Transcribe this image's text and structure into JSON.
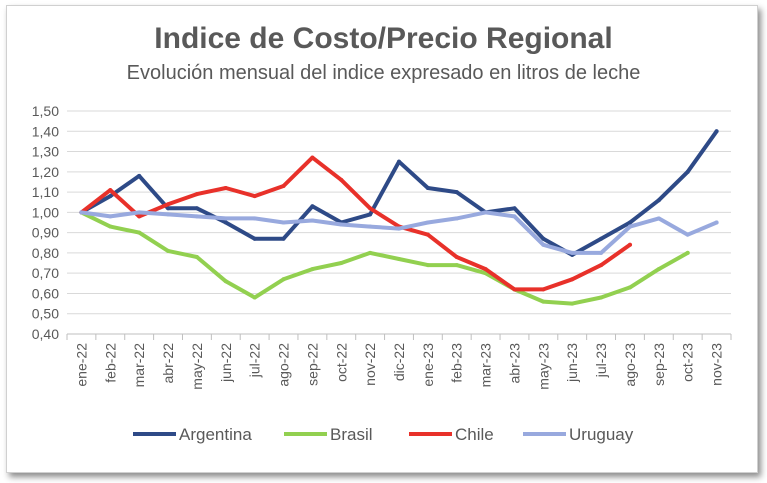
{
  "chart_data": {
    "type": "line",
    "title": "Indice de Costo/Precio Regional",
    "subtitle": "Evolución mensual del indice expresado en litros de leche",
    "categories": [
      "ene-22",
      "feb-22",
      "mar-22",
      "abr-22",
      "may-22",
      "jun-22",
      "jul-22",
      "ago-22",
      "sep-22",
      "oct-22",
      "nov-22",
      "dic-22",
      "ene-23",
      "feb-23",
      "mar-23",
      "abr-23",
      "may-23",
      "jun-23",
      "jul-23",
      "ago-23",
      "sep-23",
      "oct-23",
      "nov-23"
    ],
    "ylim": [
      0.4,
      1.5
    ],
    "y_ticks": [
      "0,40",
      "0,50",
      "0,60",
      "0,70",
      "0,80",
      "0,90",
      "1,00",
      "1,10",
      "1,20",
      "1,30",
      "1,40",
      "1,50"
    ],
    "grid": true,
    "legend": "bottom",
    "series": [
      {
        "name": "Argentina",
        "color": "#2e4a87",
        "values": [
          1.0,
          1.08,
          1.18,
          1.02,
          1.02,
          0.95,
          0.87,
          0.87,
          1.03,
          0.95,
          0.99,
          1.25,
          1.12,
          1.1,
          1.0,
          1.02,
          0.87,
          0.79,
          0.87,
          0.95,
          1.06,
          1.2,
          1.4
        ]
      },
      {
        "name": "Brasil",
        "color": "#92d050",
        "values": [
          1.0,
          0.93,
          0.9,
          0.81,
          0.78,
          0.66,
          0.58,
          0.67,
          0.72,
          0.75,
          0.8,
          0.77,
          0.74,
          0.74,
          0.7,
          0.62,
          0.56,
          0.55,
          0.58,
          0.63,
          0.72,
          0.8,
          null
        ]
      },
      {
        "name": "Chile",
        "color": "#e8312a",
        "values": [
          1.0,
          1.11,
          0.98,
          1.04,
          1.09,
          1.12,
          1.08,
          1.13,
          1.27,
          1.16,
          1.02,
          0.93,
          0.89,
          0.78,
          0.72,
          0.62,
          0.62,
          0.67,
          0.74,
          0.84,
          null,
          null,
          null
        ]
      },
      {
        "name": "Uruguay",
        "color": "#98a9de",
        "values": [
          1.0,
          0.98,
          1.0,
          0.99,
          0.98,
          0.97,
          0.97,
          0.95,
          0.96,
          0.94,
          0.93,
          0.92,
          0.95,
          0.97,
          1.0,
          0.98,
          0.84,
          0.8,
          0.8,
          0.93,
          0.97,
          0.89,
          0.95
        ]
      }
    ]
  }
}
